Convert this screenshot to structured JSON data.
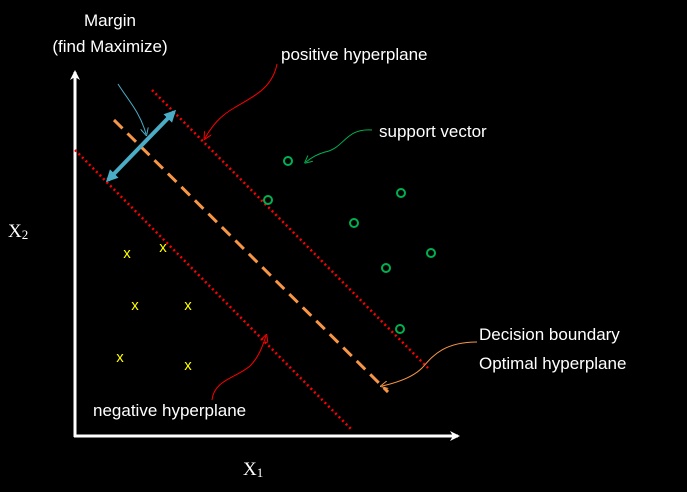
{
  "labels": {
    "margin_line1": "Margin",
    "margin_line2": "(find Maximize)",
    "positive_hyperplane": "positive hyperplane",
    "support_vector": "support vector",
    "decision_line1": "Decision boundary",
    "decision_line2": "Optimal hyperplane",
    "negative_hyperplane": "negative hyperplane",
    "x_axis_main": "X",
    "x_axis_sub": "1",
    "y_axis_main": "X",
    "y_axis_sub": "2"
  },
  "classes": {
    "negative": {
      "marker": "x",
      "color": "#ffff00"
    },
    "positive": {
      "marker": "o",
      "color": "#00b050"
    }
  },
  "colors": {
    "background": "#000000",
    "axes": "#ffffff",
    "hyperplane": "#ff0000",
    "decision_boundary": "#f79646",
    "margin_arrow": "#4bacc6",
    "margin_callout": "#4bacc6",
    "positive_callout": "#ff0000",
    "support_callout": "#00b050",
    "decision_callout": "#f79646",
    "negative_callout": "#ff0000"
  }
}
